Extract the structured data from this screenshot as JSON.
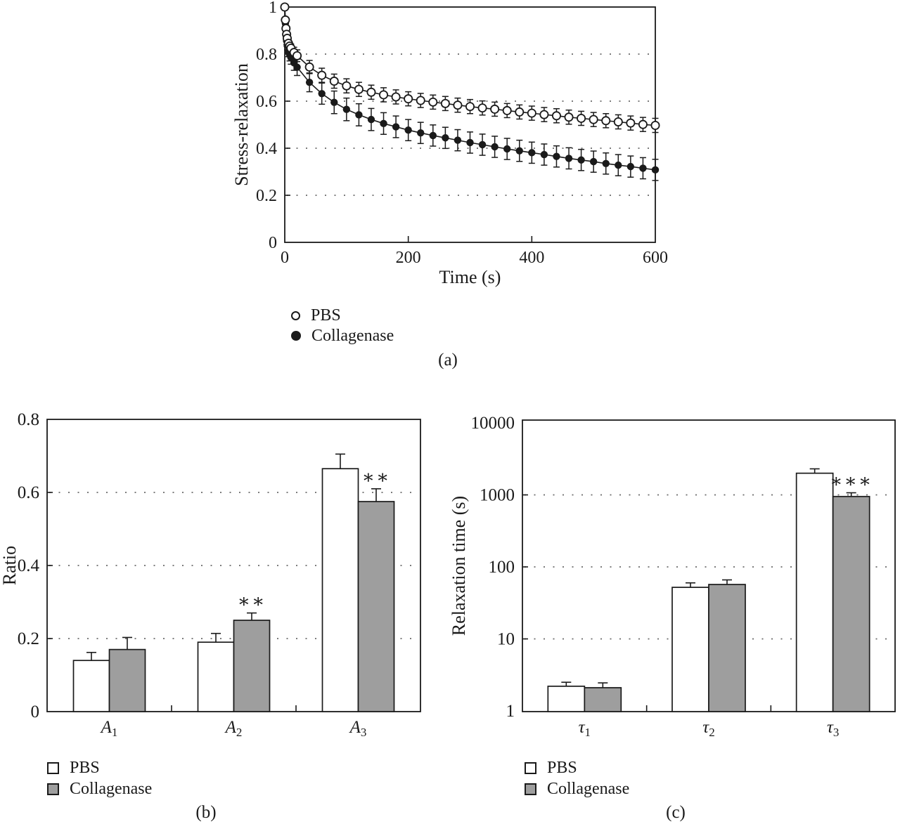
{
  "figure": {
    "panels": [
      {
        "id": "a",
        "caption": "(a)"
      },
      {
        "id": "b",
        "caption": "(b)"
      },
      {
        "id": "c",
        "caption": "(c)"
      }
    ]
  },
  "legend": {
    "pbs_label": "PBS",
    "collagenase_label": "Collagenase"
  },
  "colors": {
    "ink": "#1a1a1a",
    "bar_gray": "#9e9e9e",
    "grid": "#6a6a6a",
    "background": "#ffffff"
  },
  "chart_data": [
    {
      "id": "a",
      "type": "line",
      "title": "",
      "xlabel": "Time (s)",
      "ylabel": "Stress-relaxation",
      "xlim": [
        0,
        600
      ],
      "ylim": [
        0,
        1
      ],
      "xticks": [
        0,
        200,
        400,
        600
      ],
      "xticklabels": [
        "0",
        "200",
        "400",
        "600"
      ],
      "yticks": [
        0,
        0.2,
        0.4,
        0.6,
        0.8,
        1
      ],
      "yticklabels": [
        "0",
        "0.2",
        "0.4",
        "0.6",
        "0.8",
        "1"
      ],
      "grid_y": [
        0.2,
        0.4,
        0.6,
        0.8
      ],
      "grid_style": "dotted",
      "legend_position": "below-left",
      "x": [
        0,
        1,
        2,
        3,
        4,
        6,
        8,
        10,
        15,
        20,
        40,
        60,
        80,
        100,
        120,
        140,
        160,
        180,
        200,
        220,
        240,
        260,
        280,
        300,
        320,
        340,
        360,
        380,
        400,
        420,
        440,
        460,
        480,
        500,
        520,
        540,
        560,
        580,
        600
      ],
      "series": [
        {
          "name": "Collagenase",
          "marker": "filled-circle",
          "values": [
            1.0,
            0.931,
            0.886,
            0.856,
            0.836,
            0.811,
            0.796,
            0.785,
            0.763,
            0.744,
            0.68,
            0.632,
            0.595,
            0.565,
            0.542,
            0.522,
            0.505,
            0.491,
            0.477,
            0.465,
            0.454,
            0.444,
            0.434,
            0.424,
            0.415,
            0.406,
            0.397,
            0.389,
            0.381,
            0.373,
            0.365,
            0.357,
            0.35,
            0.343,
            0.335,
            0.328,
            0.322,
            0.315,
            0.308
          ],
          "errors": [
            0.004,
            0.008,
            0.012,
            0.015,
            0.018,
            0.022,
            0.025,
            0.028,
            0.032,
            0.035,
            0.04,
            0.045,
            0.048,
            0.048,
            0.047,
            0.047,
            0.046,
            0.046,
            0.045,
            0.045,
            0.045,
            0.045,
            0.045,
            0.045,
            0.045,
            0.045,
            0.045,
            0.045,
            0.045,
            0.045,
            0.045,
            0.045,
            0.045,
            0.045,
            0.045,
            0.045,
            0.045,
            0.045,
            0.045
          ]
        },
        {
          "name": "PBS",
          "marker": "open-circle",
          "values": [
            1.0,
            0.945,
            0.909,
            0.884,
            0.867,
            0.846,
            0.834,
            0.825,
            0.807,
            0.793,
            0.745,
            0.71,
            0.685,
            0.665,
            0.65,
            0.638,
            0.627,
            0.618,
            0.61,
            0.603,
            0.596,
            0.59,
            0.583,
            0.577,
            0.571,
            0.566,
            0.56,
            0.554,
            0.549,
            0.543,
            0.538,
            0.532,
            0.527,
            0.522,
            0.517,
            0.512,
            0.507,
            0.501,
            0.497
          ],
          "errors": [
            0.004,
            0.006,
            0.008,
            0.01,
            0.012,
            0.014,
            0.016,
            0.018,
            0.022,
            0.025,
            0.028,
            0.03,
            0.03,
            0.03,
            0.03,
            0.03,
            0.03,
            0.03,
            0.03,
            0.03,
            0.03,
            0.03,
            0.03,
            0.03,
            0.03,
            0.03,
            0.03,
            0.03,
            0.03,
            0.03,
            0.03,
            0.03,
            0.03,
            0.03,
            0.03,
            0.03,
            0.03,
            0.03,
            0.03
          ]
        }
      ]
    },
    {
      "id": "b",
      "type": "bar",
      "title": "",
      "xlabel": "",
      "ylabel": "Ratio",
      "yscale": "linear",
      "ylim": [
        0,
        0.8
      ],
      "yticks": [
        0,
        0.2,
        0.4,
        0.6,
        0.8
      ],
      "yticklabels": [
        "0",
        "0.2",
        "0.4",
        "0.6",
        "0.8"
      ],
      "grid_y": [
        0.2,
        0.4,
        0.6
      ],
      "grid_style": "dotted",
      "legend_position": "below-left",
      "categories": [
        {
          "symbol": "A",
          "sub": "1"
        },
        {
          "symbol": "A",
          "sub": "2"
        },
        {
          "symbol": "A",
          "sub": "3"
        }
      ],
      "series": [
        {
          "name": "PBS",
          "fill": "#ffffff",
          "values": [
            0.14,
            0.19,
            0.665
          ],
          "errors": [
            0.022,
            0.024,
            0.04
          ]
        },
        {
          "name": "Collagenase",
          "fill": "#9e9e9e",
          "values": [
            0.17,
            0.25,
            0.575
          ],
          "errors": [
            0.033,
            0.02,
            0.035
          ]
        }
      ],
      "significance": [
        {
          "category_index": 1,
          "series_index": 1,
          "label": "∗∗"
        },
        {
          "category_index": 2,
          "series_index": 1,
          "label": "∗∗"
        }
      ]
    },
    {
      "id": "c",
      "type": "bar",
      "title": "",
      "xlabel": "",
      "ylabel": "Relaxation time (s)",
      "yscale": "log",
      "ylim": [
        1,
        10000
      ],
      "yticks": [
        1,
        10,
        100,
        1000,
        10000
      ],
      "yticklabels": [
        "1",
        "10",
        "100",
        "1000",
        "10000"
      ],
      "grid_y": [
        10,
        100,
        1000
      ],
      "grid_style": "dotted",
      "legend_position": "below-left",
      "categories": [
        {
          "symbol": "τ",
          "sub": "1"
        },
        {
          "symbol": "τ",
          "sub": "2"
        },
        {
          "symbol": "τ",
          "sub": "3"
        }
      ],
      "series": [
        {
          "name": "PBS",
          "fill": "#ffffff",
          "values": [
            2.2,
            52,
            2000
          ],
          "errors": [
            0.3,
            8,
            300
          ]
        },
        {
          "name": "Collagenase",
          "fill": "#9e9e9e",
          "values": [
            2.1,
            57,
            950
          ],
          "errors": [
            0.35,
            9,
            120
          ]
        }
      ],
      "significance": [
        {
          "category_index": 2,
          "series_index": 1,
          "label": "∗∗∗"
        }
      ]
    }
  ]
}
